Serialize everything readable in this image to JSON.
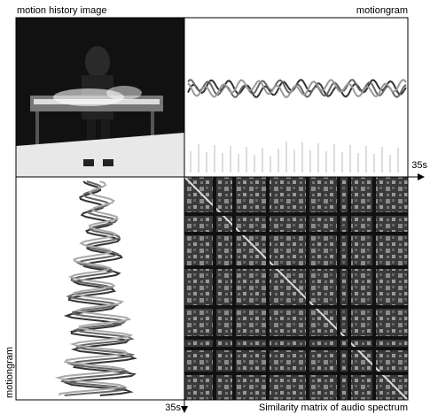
{
  "figure": {
    "top_left_label": "motion history image",
    "top_right_label": "motiongram",
    "horizontal_time_label": "35s",
    "left_label": "motiongram",
    "vertical_time_label": "35s",
    "bottom_right_label": "Similarity matrix of audio spectrum"
  }
}
